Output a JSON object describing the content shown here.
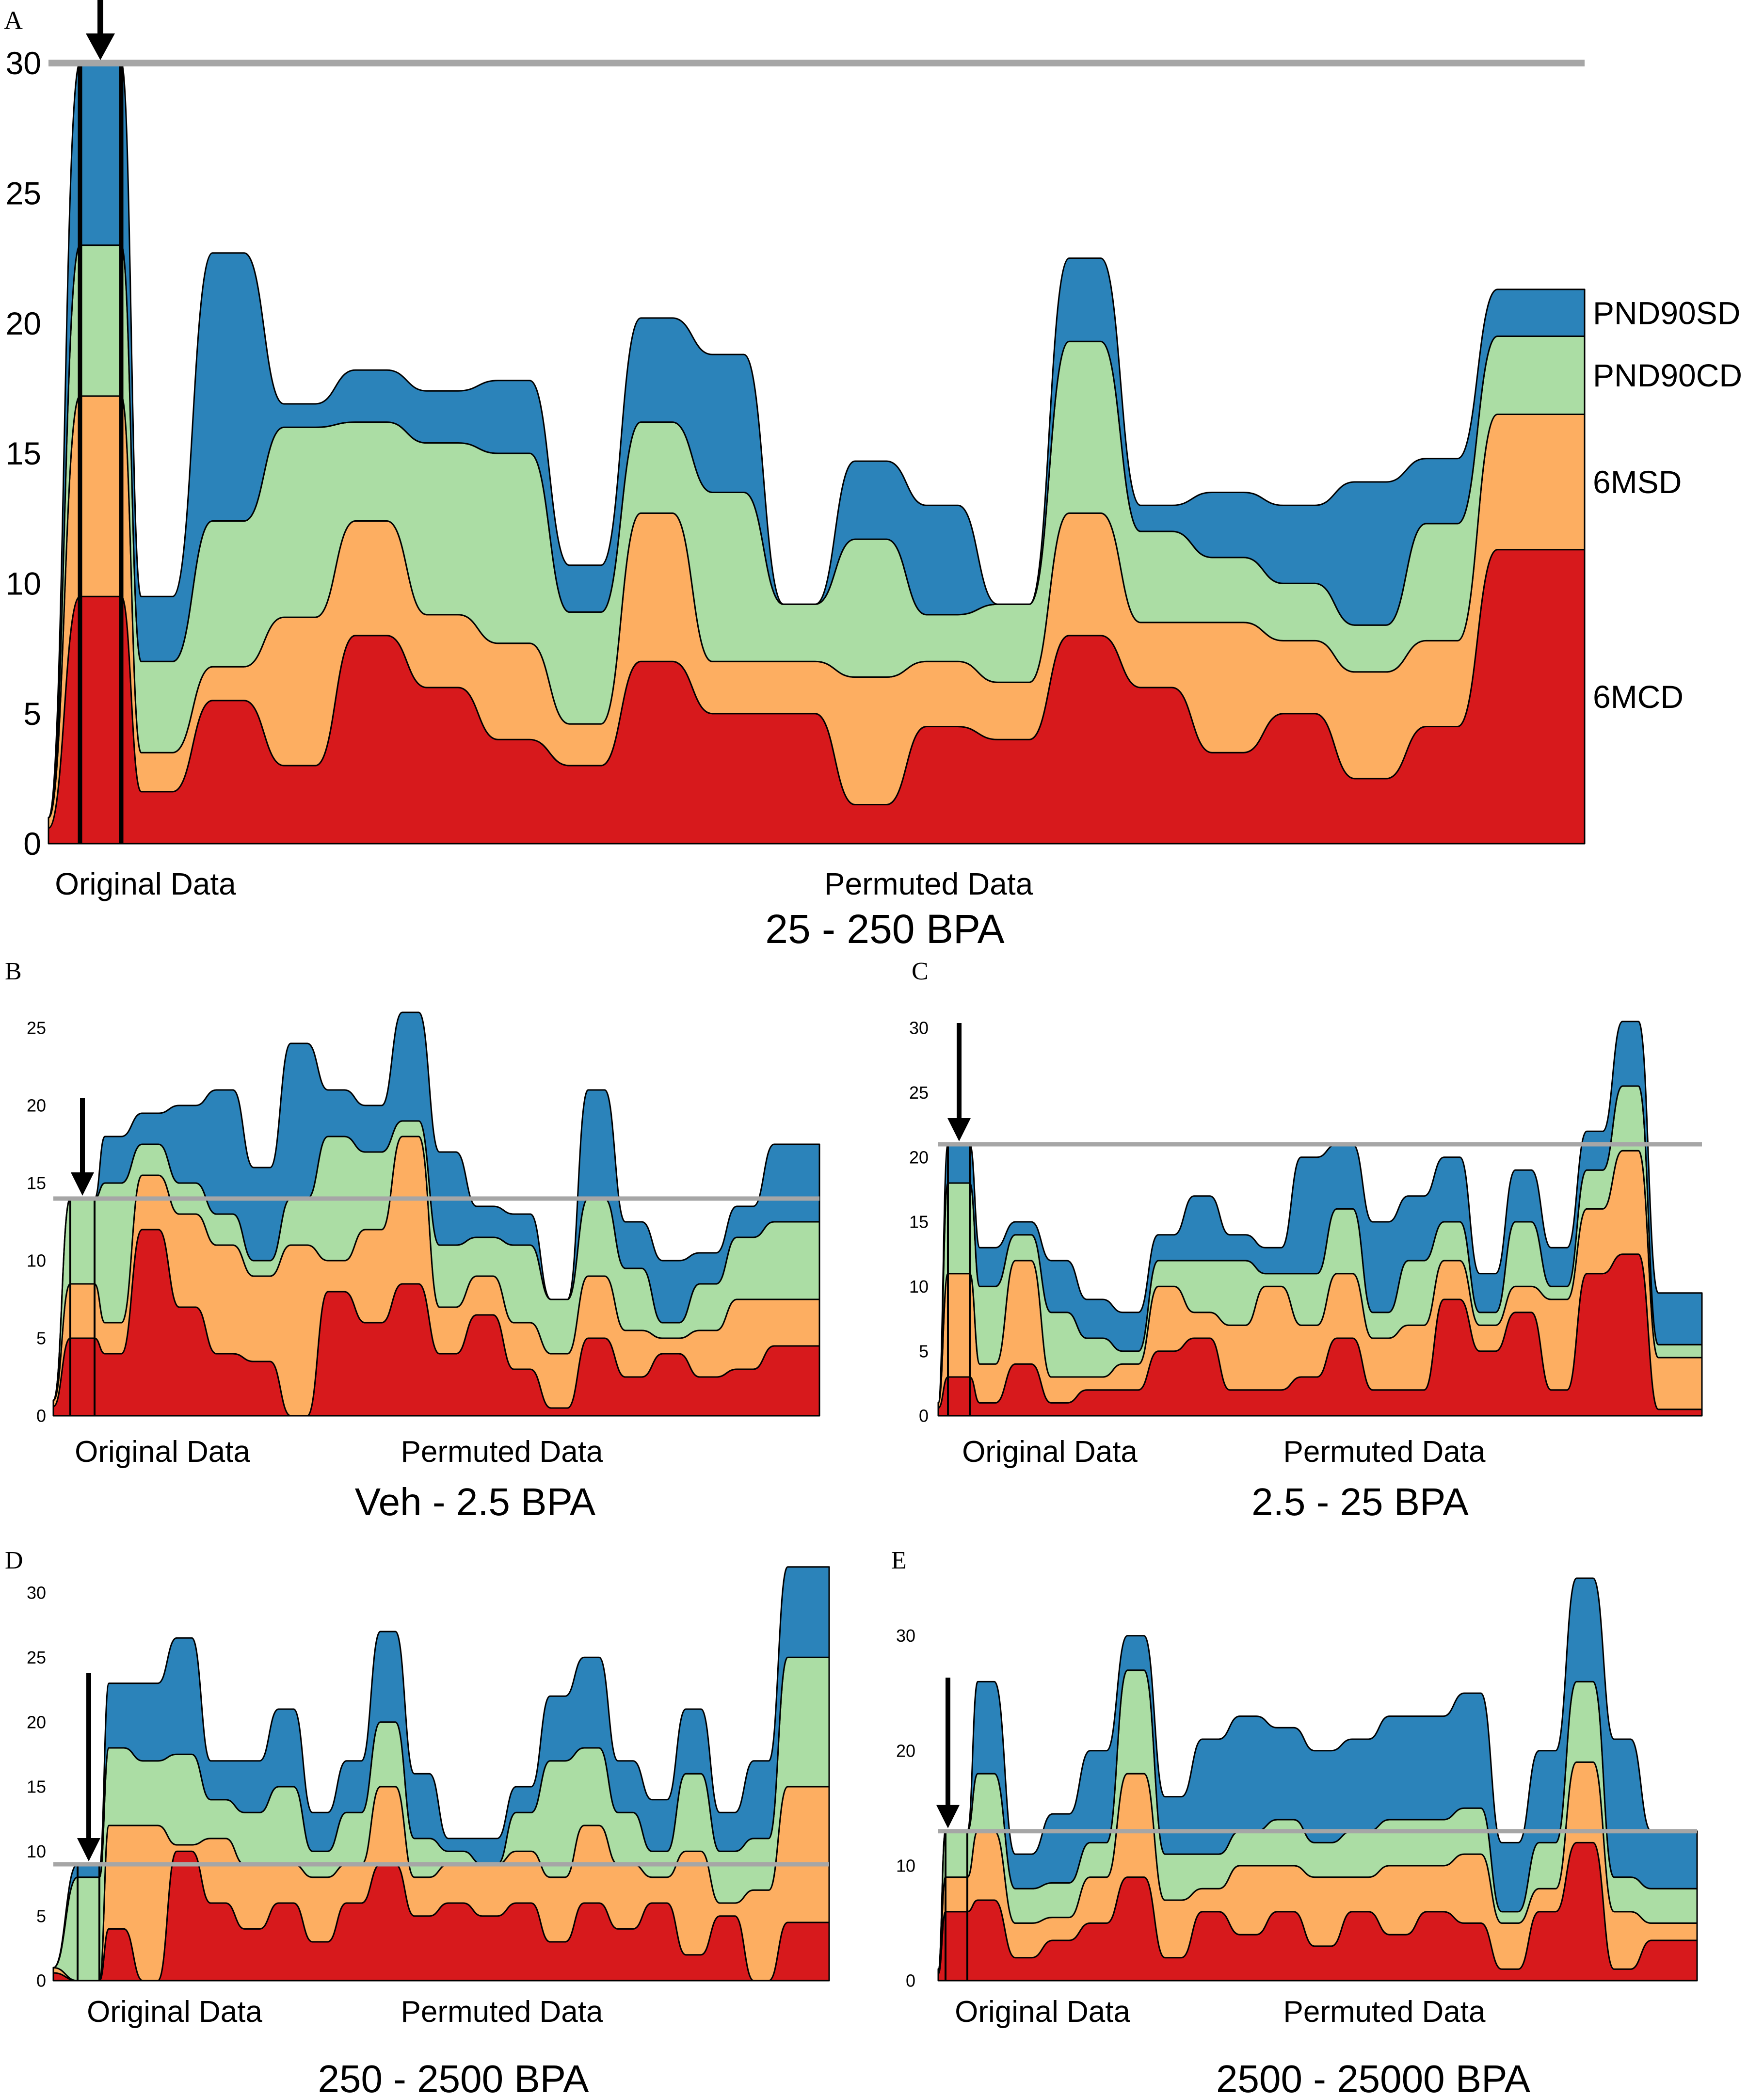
{
  "colors": {
    "6MCD": "#d7191c",
    "6MSD": "#fdae61",
    "PND90CD": "#abdda4",
    "PND90SD": "#2b83ba",
    "reference_line": "#a6a6a6",
    "outline": "#000000"
  },
  "chart_data": [
    {
      "panel": "A",
      "type": "area",
      "subtype": "stacked-streamgraph",
      "title": "25 - 250 BPA",
      "xlabel_left": "Original Data",
      "xlabel_right": "Permuted Data",
      "ylim": [
        0,
        30
      ],
      "yticks": [
        "0",
        "5",
        "10",
        "15",
        "20",
        "25",
        "30"
      ],
      "legend": [
        "PND90SD",
        "PND90CD",
        "6MSD",
        "6MCD"
      ],
      "legend_position": "right",
      "original_value": 30,
      "reference_line": 30,
      "arrow": "down, at Original Data",
      "series": [
        {
          "name": "6MCD",
          "values": [
            9.5,
            2,
            5.5,
            3,
            8,
            6,
            4,
            3,
            7,
            5,
            5,
            1.5,
            4.5,
            4,
            8,
            6,
            3.5,
            5,
            2.5,
            4.5,
            11.3
          ]
        },
        {
          "name": "6MSD",
          "values": [
            7.7,
            1.5,
            1.3,
            5.7,
            4.4,
            2.8,
            3.7,
            1.6,
            5.7,
            2,
            2,
            4.9,
            2.5,
            2.2,
            4.7,
            2.5,
            5,
            2.8,
            4.1,
            3.3,
            5.2
          ]
        },
        {
          "name": "PND90CD",
          "values": [
            5.8,
            3.5,
            5.6,
            7.3,
            3.8,
            6.6,
            7.3,
            4.3,
            3.5,
            6.5,
            2.2,
            5.3,
            1.8,
            3,
            6.6,
            3.5,
            2.5,
            2.2,
            1.8,
            4.5,
            3
          ]
        },
        {
          "name": "PND90SD",
          "values": [
            7,
            2.5,
            10.3,
            0.9,
            2,
            2,
            2.8,
            1.8,
            4,
            5.3,
            0,
            3,
            4.2,
            0,
            3.2,
            1,
            2.5,
            3,
            5.5,
            2.5,
            1.8
          ]
        }
      ]
    },
    {
      "panel": "B",
      "type": "area",
      "subtype": "stacked-streamgraph",
      "title": "Veh - 2.5 BPA",
      "xlabel_left": "Original Data",
      "xlabel_right": "Permuted Data",
      "ylim": [
        0,
        25
      ],
      "yticks": [
        "0",
        "5",
        "10",
        "15",
        "20",
        "25"
      ],
      "original_value": 14,
      "reference_line": 14,
      "arrow": "down, at Original Data",
      "series": [
        {
          "name": "6MCD",
          "values": [
            5,
            4,
            12,
            7,
            4,
            3.5,
            0,
            8,
            6,
            8.5,
            4,
            6.5,
            3,
            0.5,
            5,
            2.5,
            4,
            2.5,
            3,
            4.5
          ]
        },
        {
          "name": "6MSD",
          "values": [
            3.5,
            2,
            3.5,
            6,
            7,
            5.5,
            11,
            2,
            6,
            9.5,
            3,
            2.5,
            3,
            3.5,
            4,
            3,
            1,
            3,
            4.5,
            3
          ]
        },
        {
          "name": "PND90CD",
          "values": [
            5.5,
            9,
            2,
            2,
            2,
            1,
            3,
            8,
            5,
            1,
            4,
            2.5,
            5,
            3.5,
            5,
            4,
            1,
            3,
            4,
            5
          ]
        },
        {
          "name": "PND90SD",
          "values": [
            0,
            3,
            2,
            5,
            8,
            6,
            10,
            3,
            3,
            7,
            6,
            2,
            2,
            0,
            7,
            3,
            4,
            2,
            2,
            5
          ]
        }
      ]
    },
    {
      "panel": "C",
      "type": "area",
      "subtype": "stacked-streamgraph",
      "title": "2.5 - 25 BPA",
      "xlabel_left": "Original Data",
      "xlabel_right": "Permuted Data",
      "ylim": [
        0,
        30
      ],
      "yticks": [
        "0",
        "5",
        "10",
        "15",
        "20",
        "25",
        "30"
      ],
      "original_value": 21,
      "reference_line": 21,
      "arrow": "down, at Original Data",
      "series": [
        {
          "name": "6MCD",
          "values": [
            3,
            1,
            4,
            1,
            2,
            2,
            5,
            6,
            2,
            2,
            3,
            6,
            2,
            2,
            9,
            5,
            8,
            2,
            11,
            12.5,
            0.5
          ]
        },
        {
          "name": "6MSD",
          "values": [
            8,
            3,
            8,
            2,
            1,
            2,
            5,
            2,
            5,
            8,
            4,
            5,
            4,
            5,
            3,
            2,
            2,
            7,
            5,
            8,
            4
          ]
        },
        {
          "name": "PND90CD",
          "values": [
            7,
            6,
            2,
            5,
            3,
            1,
            2,
            4,
            5,
            1,
            4,
            5,
            2,
            5,
            3,
            1,
            5,
            1,
            3,
            5,
            1
          ]
        },
        {
          "name": "PND90SD",
          "values": [
            3,
            3,
            1,
            4,
            3,
            3,
            2,
            5,
            2,
            2,
            9,
            5,
            7,
            5,
            5,
            3,
            4,
            3,
            3,
            5,
            4
          ]
        }
      ]
    },
    {
      "panel": "D",
      "type": "area",
      "subtype": "stacked-streamgraph",
      "title": "250 - 2500 BPA",
      "xlabel_left": "Original Data",
      "xlabel_right": "Permuted Data",
      "ylim": [
        0,
        30
      ],
      "yticks": [
        "0",
        "5",
        "10",
        "15",
        "20",
        "25",
        "30"
      ],
      "original_value": 9,
      "reference_line": 9,
      "arrow": "down, at Original Data",
      "series": [
        {
          "name": "6MCD",
          "values": [
            0,
            4,
            0,
            10,
            6,
            4,
            6,
            3,
            6,
            9,
            5,
            6,
            5,
            6,
            3,
            6,
            4,
            6,
            2,
            5,
            0,
            4.5
          ]
        },
        {
          "name": "6MSD",
          "values": [
            0,
            8,
            12,
            0.5,
            5,
            5,
            3,
            5,
            3,
            6,
            3,
            3,
            4,
            4,
            5,
            6,
            5,
            2,
            8,
            1,
            7,
            10.5
          ]
        },
        {
          "name": "PND90CD",
          "values": [
            8,
            6,
            5,
            7,
            3,
            4,
            6,
            2,
            4,
            5,
            3,
            1,
            0,
            3,
            9,
            6,
            4,
            2,
            6,
            4,
            4,
            10
          ]
        },
        {
          "name": "PND90SD",
          "values": [
            1,
            5,
            6,
            9,
            3,
            4,
            6,
            3,
            4,
            7,
            5,
            1,
            2,
            2,
            5,
            7,
            4,
            4,
            5,
            3,
            6,
            7
          ]
        }
      ]
    },
    {
      "panel": "E",
      "type": "area",
      "subtype": "stacked-streamgraph",
      "title": "2500 - 25000 BPA",
      "xlabel_left": "Original Data",
      "xlabel_right": "Permuted Data",
      "ylim": [
        0,
        35
      ],
      "yticks": [
        "0",
        "10",
        "20",
        "30"
      ],
      "original_value": 13,
      "reference_line": 13,
      "arrow": "down, at Original Data",
      "series": [
        {
          "name": "6MCD",
          "values": [
            6,
            7,
            2,
            3.5,
            5,
            9,
            2,
            6,
            4,
            6,
            3,
            6,
            4,
            6,
            5,
            1,
            6,
            12,
            1,
            3.5
          ]
        },
        {
          "name": "6MSD",
          "values": [
            3,
            6,
            3,
            2,
            4,
            9,
            5,
            2,
            6,
            4,
            6,
            3,
            6,
            4,
            6,
            4,
            2,
            7,
            5,
            1.5
          ]
        },
        {
          "name": "PND90CD",
          "values": [
            4,
            5,
            3,
            3,
            3,
            9,
            4,
            3,
            3,
            4,
            3,
            4,
            4,
            4,
            4,
            1,
            4,
            7,
            3,
            3
          ]
        },
        {
          "name": "PND90SD",
          "values": [
            0,
            8,
            3,
            6,
            8,
            3,
            5,
            10,
            10,
            8,
            8,
            8,
            9,
            9,
            10,
            6,
            8,
            9,
            12,
            5
          ]
        }
      ]
    }
  ]
}
